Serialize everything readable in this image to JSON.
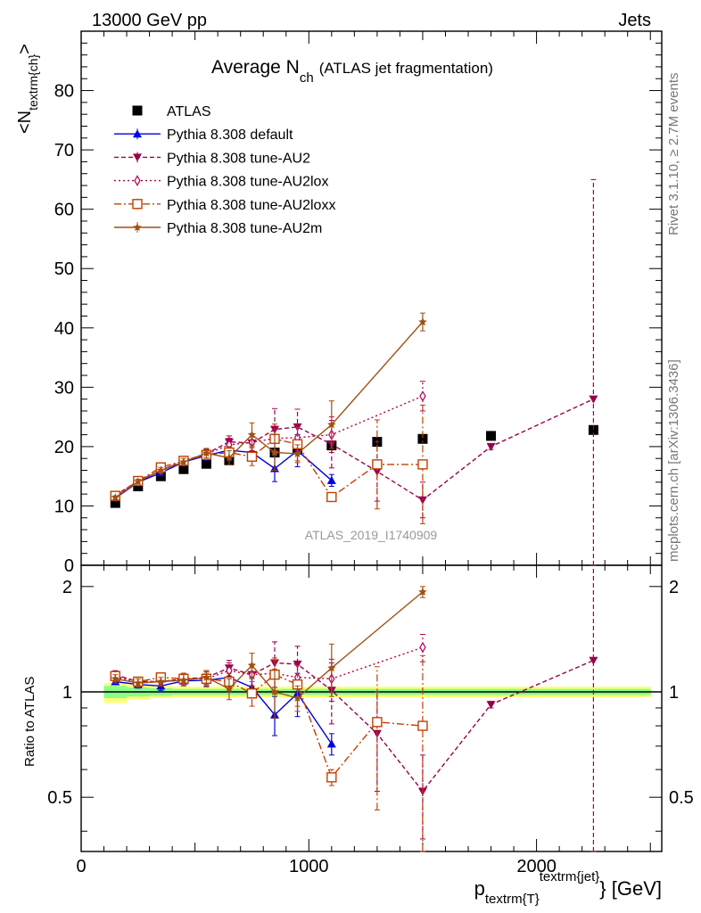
{
  "header": {
    "process": "13000 GeV pp",
    "category": "Jets",
    "title_main": "Average N",
    "title_sub": "ch",
    "title_paren": "(ATLAS jet fragmentation)",
    "rivet": "Rivet 3.1.10, ≥ 2.7M events",
    "mcplots": "mcplots.cern.ch [arXiv:1306.3436]",
    "analysis": "ATLAS_2019_I1740909"
  },
  "colors": {
    "ATLAS": "#000000",
    "default": "#0000dd",
    "AU2": "#99004d",
    "AU2lox": "#b00050",
    "AU2loxx": "#c04000",
    "AU2m": "#a05010",
    "band_inner": "#88ff88",
    "band_outer": "#ffff77"
  },
  "chart_data": {
    "type": "line",
    "title": "Average N_ch (ATLAS jet fragmentation)",
    "xlabel": "p_textrm{T}^textrm{jet} [GeV]",
    "ylabel_main": "<N_textrm{ch}>",
    "ylabel_ratio": "Ratio to ATLAS",
    "xlim": [
      0,
      2550
    ],
    "ylim_main": [
      0,
      90
    ],
    "ylim_ratio": [
      0.35,
      2.3
    ],
    "x_ticks": [
      0,
      1000,
      2000
    ],
    "y_ticks_main": [
      0,
      10,
      20,
      30,
      40,
      50,
      60,
      70,
      80
    ],
    "y_ticks_ratio": [
      0.5,
      1,
      2
    ],
    "legend_position": "top-left",
    "band": {
      "x": [
        100,
        200,
        300,
        400,
        500,
        600,
        700,
        800,
        900,
        1000,
        1200,
        1400,
        1600,
        2000,
        2500
      ],
      "inner": [
        [
          0.96,
          1.04
        ],
        [
          0.97,
          1.03
        ],
        [
          0.975,
          1.025
        ],
        [
          0.98,
          1.02
        ],
        [
          0.98,
          1.02
        ],
        [
          0.98,
          1.02
        ],
        [
          0.98,
          1.02
        ],
        [
          0.98,
          1.02
        ],
        [
          0.98,
          1.02
        ],
        [
          0.98,
          1.02
        ],
        [
          0.98,
          1.02
        ],
        [
          0.98,
          1.02
        ],
        [
          0.98,
          1.02
        ],
        [
          0.98,
          1.02
        ]
      ],
      "outer": [
        [
          0.93,
          1.06
        ],
        [
          0.95,
          1.05
        ],
        [
          0.96,
          1.04
        ],
        [
          0.965,
          1.035
        ],
        [
          0.965,
          1.035
        ],
        [
          0.965,
          1.035
        ],
        [
          0.965,
          1.035
        ],
        [
          0.965,
          1.035
        ],
        [
          0.965,
          1.035
        ],
        [
          0.965,
          1.035
        ],
        [
          0.965,
          1.035
        ],
        [
          0.965,
          1.035
        ],
        [
          0.965,
          1.035
        ],
        [
          0.965,
          1.035
        ]
      ]
    },
    "series": [
      {
        "name": "ATLAS",
        "key": "ATLAS",
        "marker": "square",
        "line": "none",
        "x": [
          150,
          250,
          350,
          450,
          550,
          650,
          750,
          850,
          950,
          1100,
          1300,
          1500,
          1800,
          2250
        ],
        "y": [
          10.5,
          13.3,
          15.0,
          16.2,
          17.1,
          17.7,
          18.4,
          19.0,
          19.5,
          20.2,
          20.8,
          21.3,
          21.8,
          22.8
        ],
        "err": [
          0.3,
          0.3,
          0.3,
          0.3,
          0.3,
          0.3,
          0.3,
          0.3,
          0.3,
          0.4,
          0.4,
          0.5,
          0.5,
          0.6
        ]
      },
      {
        "name": "Pythia 8.308 default",
        "key": "default",
        "marker": "triangle-up",
        "line": "solid",
        "x": [
          150,
          250,
          350,
          450,
          550,
          650,
          750,
          850,
          950,
          1100
        ],
        "y": [
          11.3,
          14.0,
          15.6,
          17.4,
          18.5,
          19.4,
          19.0,
          16.3,
          19.3,
          14.3
        ],
        "err": [
          0.3,
          0.4,
          0.5,
          0.6,
          0.8,
          1.0,
          1.3,
          2.2,
          2.7,
          1.0
        ],
        "ratio": [
          1.07,
          1.05,
          1.04,
          1.075,
          1.08,
          1.1,
          1.03,
          0.86,
          0.99,
          0.71
        ],
        "ratio_err": [
          0.02,
          0.025,
          0.03,
          0.035,
          0.045,
          0.055,
          0.07,
          0.11,
          0.14,
          0.05
        ]
      },
      {
        "name": "Pythia 8.308 tune-AU2",
        "key": "AU2",
        "marker": "triangle-down",
        "line": "dashed",
        "x": [
          150,
          250,
          350,
          450,
          550,
          650,
          750,
          850,
          950,
          1100,
          1300,
          1500,
          1800,
          2250
        ],
        "y": [
          11.8,
          14.2,
          16.0,
          17.6,
          18.8,
          20.8,
          20.6,
          22.9,
          23.3,
          20.4,
          15.8,
          11.0,
          20.0,
          28.0
        ],
        "err": [
          0.3,
          0.4,
          0.5,
          0.6,
          0.8,
          1.0,
          1.5,
          3.5,
          3.0,
          4.0,
          5.0,
          3.0,
          0.5,
          37.0
        ],
        "ratio": [
          1.12,
          1.07,
          1.07,
          1.09,
          1.1,
          1.17,
          1.12,
          1.21,
          1.2,
          1.01,
          0.76,
          0.52,
          0.92,
          1.23
        ],
        "ratio_err": [
          0.03,
          0.03,
          0.03,
          0.04,
          0.05,
          0.06,
          0.08,
          0.18,
          0.15,
          0.2,
          0.24,
          0.14,
          0.02,
          1.6
        ]
      },
      {
        "name": "Pythia 8.308 tune-AU2lox",
        "key": "AU2lox",
        "marker": "diamond-open",
        "line": "dotted",
        "x": [
          150,
          250,
          350,
          450,
          550,
          650,
          750,
          850,
          950,
          1100,
          1500
        ],
        "y": [
          11.6,
          14.2,
          16.0,
          17.6,
          18.7,
          20.3,
          20.7,
          21.4,
          21.5,
          22.0,
          28.5
        ],
        "err": [
          0.3,
          0.4,
          0.5,
          0.6,
          0.8,
          1.1,
          1.4,
          2.0,
          2.2,
          3.0,
          2.5
        ],
        "ratio": [
          1.1,
          1.07,
          1.07,
          1.09,
          1.09,
          1.15,
          1.12,
          1.13,
          1.1,
          1.09,
          1.34
        ],
        "ratio_err": [
          0.03,
          0.03,
          0.03,
          0.04,
          0.05,
          0.06,
          0.08,
          0.1,
          0.11,
          0.15,
          0.12
        ]
      },
      {
        "name": "Pythia 8.308 tune-AU2loxx",
        "key": "AU2loxx",
        "marker": "square-open",
        "line": "dashdot",
        "x": [
          150,
          250,
          350,
          450,
          550,
          650,
          750,
          850,
          950,
          1100,
          1300,
          1500
        ],
        "y": [
          11.7,
          14.2,
          16.5,
          17.6,
          18.6,
          19.0,
          18.3,
          21.3,
          20.4,
          11.5,
          17.0,
          17.0
        ],
        "err": [
          0.3,
          0.4,
          0.5,
          0.6,
          0.8,
          1.0,
          1.5,
          2.5,
          2.8,
          0.6,
          7.5,
          10.0
        ],
        "ratio": [
          1.11,
          1.07,
          1.1,
          1.09,
          1.09,
          1.07,
          0.99,
          1.12,
          1.05,
          0.57,
          0.82,
          0.8
        ],
        "ratio_err": [
          0.03,
          0.03,
          0.03,
          0.04,
          0.05,
          0.06,
          0.08,
          0.13,
          0.14,
          0.03,
          0.36,
          0.47
        ]
      },
      {
        "name": "Pythia 8.308 tune-AU2m",
        "key": "AU2m",
        "marker": "star",
        "line": "solid",
        "x": [
          150,
          250,
          350,
          450,
          550,
          650,
          750,
          850,
          950,
          1100,
          1500
        ],
        "y": [
          11.4,
          14.1,
          16.0,
          17.4,
          18.9,
          18.1,
          22.0,
          19.0,
          18.8,
          23.7,
          41.0
        ],
        "err": [
          0.3,
          0.4,
          0.5,
          0.6,
          0.8,
          1.2,
          2.0,
          3.0,
          1.5,
          4.0,
          1.5
        ],
        "ratio": [
          1.09,
          1.06,
          1.07,
          1.08,
          1.1,
          1.02,
          1.19,
          1.0,
          0.96,
          1.17,
          1.93
        ],
        "ratio_err": [
          0.03,
          0.03,
          0.03,
          0.04,
          0.05,
          0.07,
          0.1,
          0.16,
          0.08,
          0.2,
          0.07
        ]
      }
    ]
  }
}
